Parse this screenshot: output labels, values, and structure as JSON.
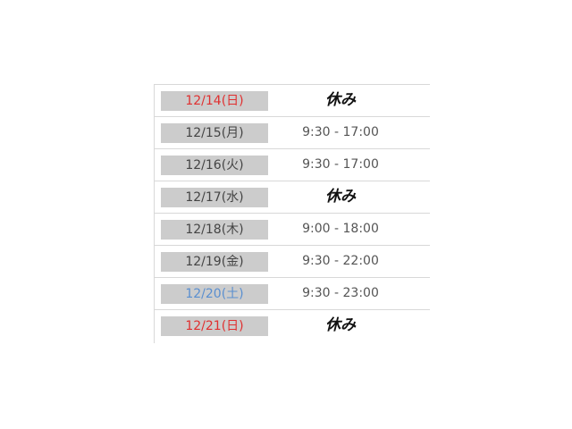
{
  "colors": {
    "sunday": "#e03030",
    "saturday": "#5a8fd0",
    "weekday": "#444444"
  },
  "schedule": [
    {
      "date": "12/14(日)",
      "hours": "休み",
      "type": "sunday"
    },
    {
      "date": "12/15(月)",
      "hours": "9:30 - 17:00",
      "type": "weekday"
    },
    {
      "date": "12/16(火)",
      "hours": "9:30 - 17:00",
      "type": "weekday"
    },
    {
      "date": "12/17(水)",
      "hours": "休み",
      "type": "weekday"
    },
    {
      "date": "12/18(木)",
      "hours": "9:00 - 18:00",
      "type": "weekday"
    },
    {
      "date": "12/19(金)",
      "hours": "9:30 - 22:00",
      "type": "weekday"
    },
    {
      "date": "12/20(土)",
      "hours": "9:30 - 23:00",
      "type": "saturday"
    },
    {
      "date": "12/21(日)",
      "hours": "休み",
      "type": "sunday"
    }
  ]
}
